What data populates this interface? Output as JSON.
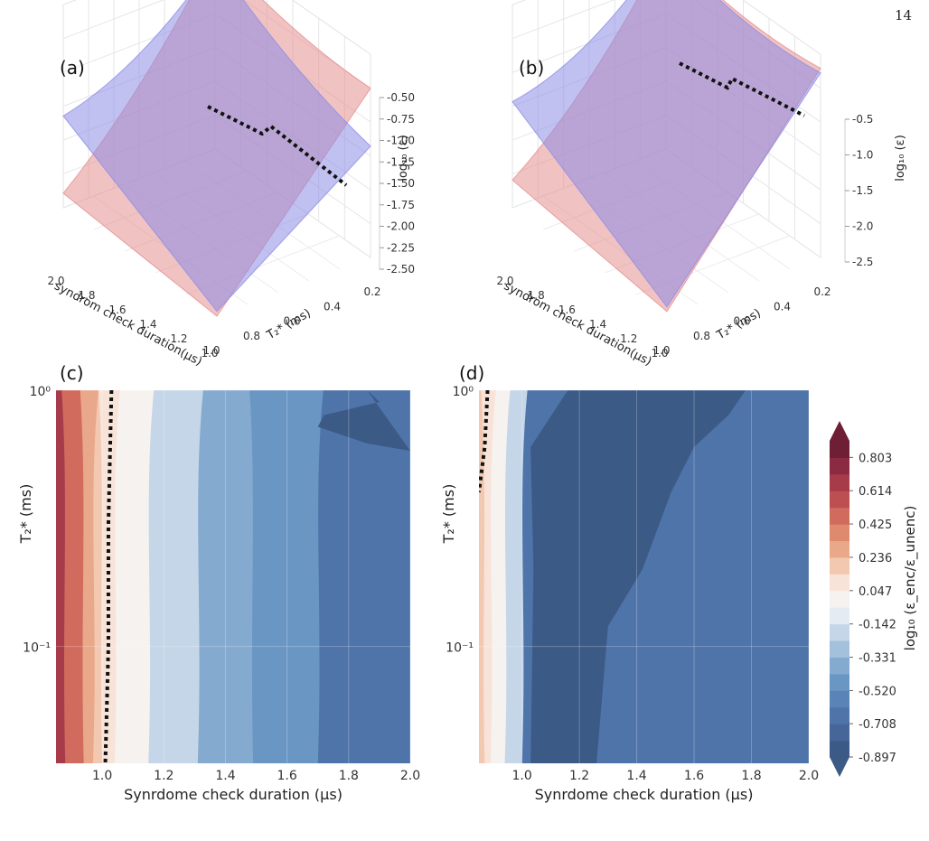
{
  "page_number": "14",
  "colors": {
    "surface_encoded": "#e58f8f",
    "surface_unencoded": "#8c8ce6",
    "crossing_line": "#111111",
    "colormap": [
      "#3c5a86",
      "#46669a",
      "#4f74aa",
      "#5a83b8",
      "#6a96c4",
      "#85aad0",
      "#a3c1dd",
      "#c5d6e8",
      "#e4ebf2",
      "#f6f2ef",
      "#f8e3d8",
      "#f3c8b1",
      "#eaa88a",
      "#df896f",
      "#d06b5e",
      "#bd4e51",
      "#a73b49",
      "#8c2a42",
      "#6e1f35"
    ]
  },
  "chart_data": [
    {
      "panel_label": "(a)",
      "type": "surface",
      "xlabel": "syndrom check duration(μs)",
      "ylabel": "T₂* (ms)",
      "zlabel": "log₁₀ (ε)",
      "x_ticks": [
        "2.0",
        "1.8",
        "1.6",
        "1.4",
        "1.2",
        "1.0"
      ],
      "y_ticks": [
        "0.2",
        "0.4",
        "0.6",
        "0.8",
        "1.0"
      ],
      "z_ticks": [
        "-0.50",
        "-0.75",
        "-1.00",
        "-1.25",
        "-1.50",
        "-1.75",
        "-2.00",
        "-2.25",
        "-2.50"
      ],
      "xlim": [
        1.0,
        2.0
      ],
      "ylim": [
        0.05,
        1.0
      ],
      "zlim": [
        -2.5,
        -0.4
      ],
      "crossing_at_x": 1.02
    },
    {
      "panel_label": "(b)",
      "type": "surface",
      "xlabel": "syndrom check duration(μs)",
      "ylabel": "T₂* (ms)",
      "zlabel": "log₁₀ (ε)",
      "x_ticks": [
        "2.0",
        "1.8",
        "1.6",
        "1.4",
        "1.2",
        "1.0"
      ],
      "y_ticks": [
        "0.2",
        "0.4",
        "0.6",
        "0.8",
        "1.0"
      ],
      "z_ticks": [
        "-0.5",
        "-1.0",
        "-1.5",
        "-2.0",
        "-2.5"
      ],
      "xlim": [
        1.0,
        2.0
      ],
      "ylim": [
        0.05,
        1.0
      ],
      "zlim": [
        -2.6,
        -0.4
      ],
      "crossing_at_x": 0.88
    },
    {
      "panel_label": "(c)",
      "type": "contour",
      "xlabel": "Synrdome check duration (μs)",
      "ylabel": "T₂* (ms)",
      "x_ticks": [
        "1.0",
        "1.2",
        "1.4",
        "1.6",
        "1.8",
        "2.0"
      ],
      "y_ticks": [
        "10⁰",
        "10⁻¹"
      ],
      "xlim": [
        0.85,
        2.0
      ],
      "ylim": [
        0.035,
        1.0
      ],
      "y_scale": "log",
      "boundaries_x": [
        0.88,
        0.91,
        0.94,
        0.97,
        1.0,
        1.04,
        1.09,
        1.15,
        1.22,
        1.31,
        1.49,
        1.7
      ],
      "boundary_levels": [
        0.614,
        0.519,
        0.425,
        0.33,
        0.236,
        0.141,
        0.047,
        -0.047,
        -0.142,
        -0.236,
        -0.331,
        -0.425,
        -0.52
      ],
      "dark_region": [
        [
          1.86,
          1.0
        ],
        [
          1.9,
          0.9
        ],
        [
          1.72,
          0.8
        ],
        [
          1.7,
          0.72
        ],
        [
          1.86,
          0.62
        ],
        [
          2.0,
          0.58
        ]
      ],
      "crossing_line": [
        [
          1.03,
          1.0
        ],
        [
          1.02,
          0.3
        ],
        [
          1.02,
          0.1
        ],
        [
          1.01,
          0.035
        ]
      ]
    },
    {
      "panel_label": "(d)",
      "type": "contour",
      "xlabel": "Synrdome check duration (μs)",
      "ylabel": "T₂* (ms)",
      "x_ticks": [
        "1.0",
        "1.2",
        "1.4",
        "1.6",
        "1.8",
        "2.0"
      ],
      "y_ticks": [
        "10⁰",
        "10⁻¹"
      ],
      "xlim": [
        0.85,
        2.0
      ],
      "ylim": [
        0.035,
        1.0
      ],
      "y_scale": "log",
      "boundaries_x": [
        0.87,
        0.89,
        0.91,
        0.94,
        0.97,
        1.0
      ],
      "boundary_levels": [
        0.236,
        0.141,
        0.047,
        -0.047,
        -0.142,
        -0.236,
        -0.331
      ],
      "dark_region": [
        [
          1.16,
          1.0
        ],
        [
          1.03,
          0.6
        ],
        [
          1.04,
          0.2
        ],
        [
          1.03,
          0.035
        ],
        [
          1.26,
          0.035
        ],
        [
          1.3,
          0.12
        ],
        [
          1.42,
          0.2
        ],
        [
          1.52,
          0.4
        ],
        [
          1.6,
          0.6
        ],
        [
          1.72,
          0.8
        ],
        [
          1.78,
          1.0
        ]
      ],
      "crossing_line": [
        [
          0.88,
          1.0
        ],
        [
          0.87,
          0.6
        ],
        [
          0.85,
          0.4
        ]
      ]
    }
  ],
  "colorbar": {
    "label": "log₁₀ (ε_enc/ε_unenc)",
    "ticks": [
      "0.803",
      "0.614",
      "0.425",
      "0.236",
      "0.047",
      "-0.142",
      "-0.331",
      "-0.520",
      "-0.708",
      "-0.897"
    ],
    "range": [
      -0.897,
      0.897
    ]
  }
}
